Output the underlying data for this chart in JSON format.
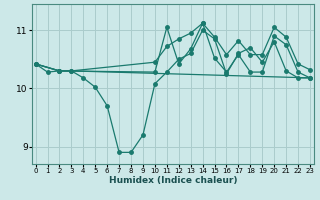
{
  "xlabel": "Humidex (Indice chaleur)",
  "bg_color": "#cce8e8",
  "grid_color": "#aacccc",
  "line_color": "#1a7a6e",
  "xlim": [
    -0.3,
    23.3
  ],
  "ylim": [
    8.7,
    11.45
  ],
  "yticks": [
    9,
    10,
    11
  ],
  "xticks": [
    0,
    1,
    2,
    3,
    4,
    5,
    6,
    7,
    8,
    9,
    10,
    11,
    12,
    13,
    14,
    15,
    16,
    17,
    18,
    19,
    20,
    21,
    22,
    23
  ],
  "line1_x": [
    0,
    1,
    2,
    3,
    4,
    5,
    6,
    7,
    8,
    9,
    10,
    11,
    12,
    13,
    14,
    15,
    16,
    17,
    18,
    19,
    20,
    21,
    22,
    23
  ],
  "line1_y": [
    10.42,
    10.28,
    10.3,
    10.3,
    10.18,
    10.02,
    9.7,
    8.9,
    8.9,
    9.2,
    10.08,
    10.28,
    10.5,
    10.6,
    11.0,
    10.85,
    10.25,
    10.6,
    10.7,
    10.45,
    10.8,
    10.3,
    10.18,
    10.18
  ],
  "line2_x": [
    0,
    2,
    10,
    11,
    12,
    13,
    14,
    15,
    16,
    17,
    18,
    19,
    20,
    21,
    22,
    23
  ],
  "line2_y": [
    10.42,
    10.3,
    10.28,
    11.05,
    10.42,
    10.68,
    11.12,
    10.52,
    10.28,
    10.58,
    10.28,
    10.28,
    10.9,
    10.75,
    10.28,
    10.18
  ],
  "line3_x": [
    0,
    2,
    3,
    23
  ],
  "line3_y": [
    10.42,
    10.3,
    10.3,
    10.18
  ],
  "line4_x": [
    0,
    2,
    3,
    10,
    11,
    12,
    13,
    14,
    15,
    16,
    17,
    18,
    19,
    20,
    21,
    22,
    23
  ],
  "line4_y": [
    10.42,
    10.3,
    10.3,
    10.45,
    10.72,
    10.85,
    10.95,
    11.12,
    10.88,
    10.58,
    10.82,
    10.58,
    10.58,
    11.05,
    10.88,
    10.42,
    10.32
  ]
}
